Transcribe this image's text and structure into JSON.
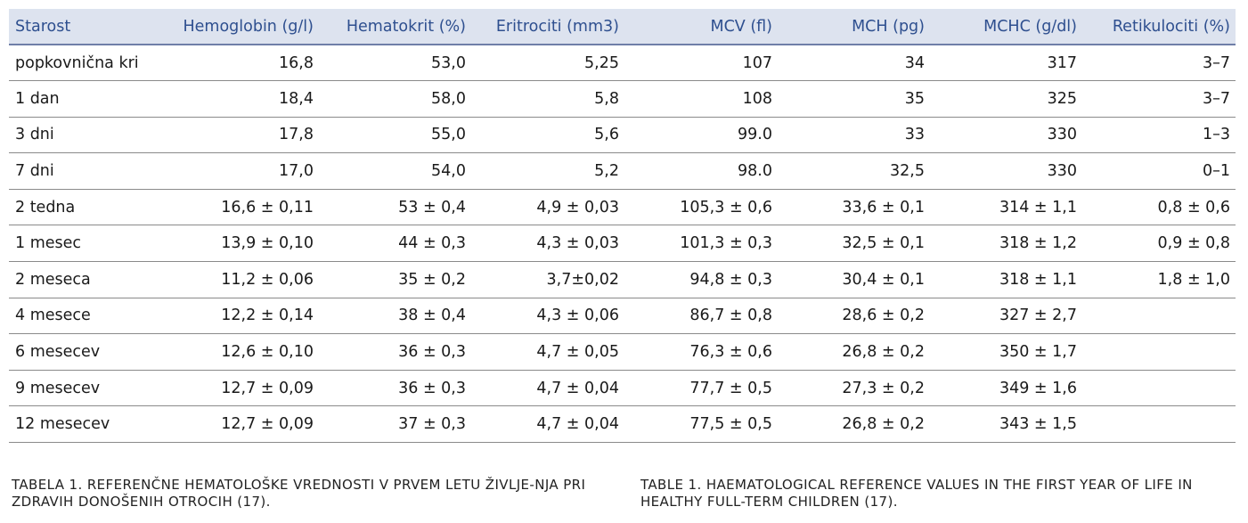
{
  "table": {
    "headers": [
      "Starost",
      "Hemoglobin (g/l)",
      "Hematokrit (%)",
      "Eritrociti (mm3)",
      "MCV (fl)",
      "MCH (pg)",
      "MCHC (g/dl)",
      "Retikulociti (%)"
    ],
    "rows": [
      [
        "popkovnična kri",
        "16,8",
        "53,0",
        "5,25",
        "107",
        "34",
        "317",
        "3–7"
      ],
      [
        "1 dan",
        "18,4",
        "58,0",
        "5,8",
        "108",
        "35",
        "325",
        "3–7"
      ],
      [
        "3 dni",
        "17,8",
        "55,0",
        "5,6",
        "99.0",
        "33",
        "330",
        "1–3"
      ],
      [
        "7 dni",
        "17,0",
        "54,0",
        "5,2",
        "98.0",
        "32,5",
        "330",
        "0–1"
      ],
      [
        "2 tedna",
        "16,6 ± 0,11",
        "53 ± 0,4",
        "4,9 ± 0,03",
        "105,3 ± 0,6",
        "33,6 ± 0,1",
        "314 ± 1,1",
        "0,8 ± 0,6"
      ],
      [
        "1 mesec",
        "13,9 ± 0,10",
        "44 ± 0,3",
        "4,3 ± 0,03",
        "101,3 ± 0,3",
        "32,5 ± 0,1",
        "318 ± 1,2",
        "0,9 ± 0,8"
      ],
      [
        "2 meseca",
        "11,2 ± 0,06",
        "35 ± 0,2",
        "3,7±0,02",
        "94,8 ± 0,3",
        "30,4 ± 0,1",
        "318 ± 1,1",
        "1,8 ± 1,0"
      ],
      [
        "4 mesece",
        "12,2 ± 0,14",
        "38 ± 0,4",
        "4,3 ± 0,06",
        "86,7 ± 0,8",
        "28,6 ± 0,2",
        "327 ± 2,7",
        ""
      ],
      [
        "6 mesecev",
        "12,6 ± 0,10",
        "36 ± 0,3",
        "4,7 ± 0,05",
        "76,3 ± 0,6",
        "26,8 ± 0,2",
        "350 ± 1,7",
        ""
      ],
      [
        "9 mesecev",
        "12,7 ± 0,09",
        "36 ± 0,3",
        "4,7 ± 0,04",
        "77,7 ± 0,5",
        "27,3 ± 0,2",
        "349 ± 1,6",
        ""
      ],
      [
        "12 mesecev",
        "12,7 ± 0,09",
        "37 ± 0,3",
        "4,7 ± 0,04",
        "77,5 ± 0,5",
        "26,8 ± 0,2",
        "343 ± 1,5",
        ""
      ]
    ]
  },
  "captions": {
    "slovenian": "TABELA 1. REFERENČNE HEMATOLOŠKE VREDNOSTI V PRVEM LETU ŽIVLJE-NJA PRI ZDRAVIH DONOŠENIH OTROCIH (17).",
    "english": "TABLE 1. HAEMATOLOGICAL REFERENCE VALUES IN THE FIRST YEAR OF LIFE IN HEALTHY FULL-TERM CHILDREN (17)."
  },
  "colors": {
    "header_background": "#dde3ef",
    "header_text": "#2e4f8f"
  }
}
